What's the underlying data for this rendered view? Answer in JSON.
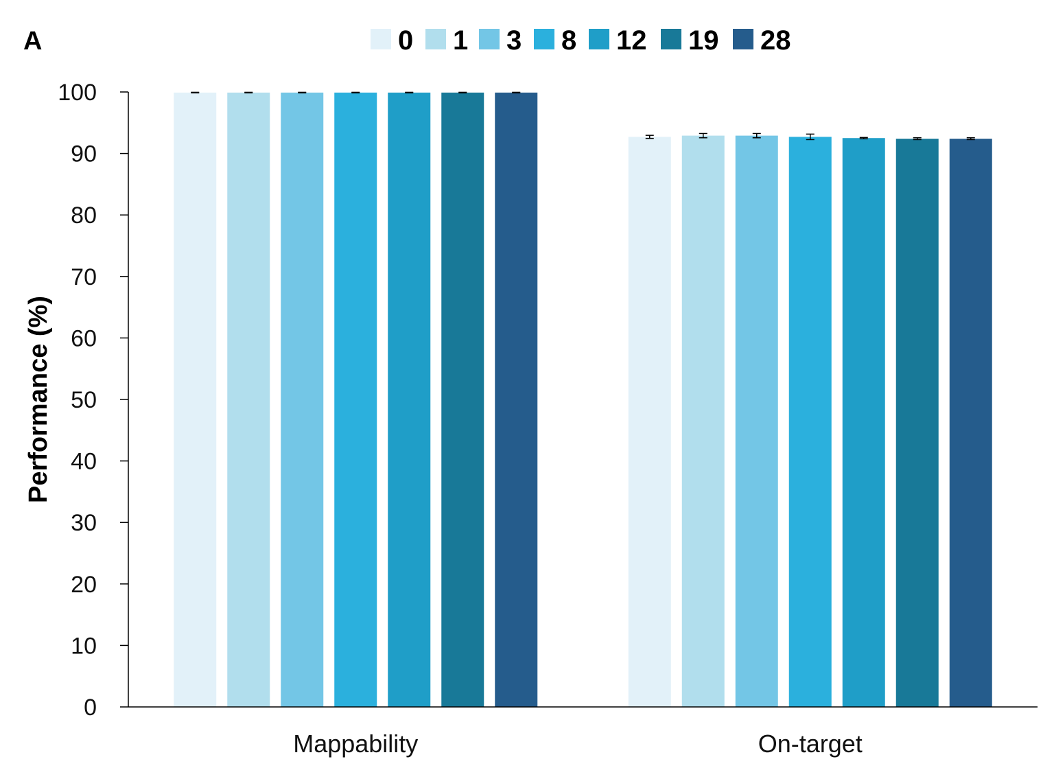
{
  "panel_label": "A",
  "chart_data": {
    "type": "bar",
    "categories": [
      "Mappability",
      "On-target"
    ],
    "series": [
      {
        "name": "0",
        "color": "#e2f1f9",
        "values": [
          99.9,
          92.7
        ],
        "errors": [
          0.05,
          0.25
        ]
      },
      {
        "name": "1",
        "color": "#b1deed",
        "values": [
          99.9,
          92.9
        ],
        "errors": [
          0.05,
          0.35
        ]
      },
      {
        "name": "3",
        "color": "#73c6e6",
        "values": [
          99.9,
          92.9
        ],
        "errors": [
          0.05,
          0.35
        ]
      },
      {
        "name": "8",
        "color": "#2bb0dd",
        "values": [
          99.9,
          92.7
        ],
        "errors": [
          0.05,
          0.45
        ]
      },
      {
        "name": "12",
        "color": "#1f9ec8",
        "values": [
          99.9,
          92.5
        ],
        "errors": [
          0.05,
          0.1
        ]
      },
      {
        "name": "19",
        "color": "#187998",
        "values": [
          99.9,
          92.4
        ],
        "errors": [
          0.05,
          0.15
        ]
      },
      {
        "name": "28",
        "color": "#255c8c",
        "values": [
          99.9,
          92.4
        ],
        "errors": [
          0.05,
          0.15
        ]
      }
    ],
    "ylabel": "Performance (%)",
    "xlabel": "",
    "ylim": [
      0,
      100
    ],
    "yticks": [
      "0",
      "10",
      "20",
      "30",
      "40",
      "50",
      "60",
      "70",
      "80",
      "90",
      "100"
    ],
    "legend_position": "top",
    "grid": false
  }
}
